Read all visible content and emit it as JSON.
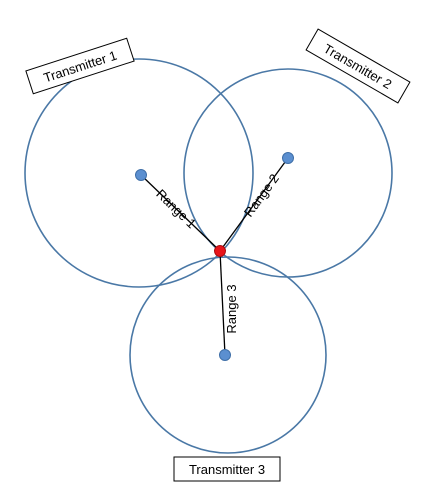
{
  "colors": {
    "circle_stroke": "#4a78a6",
    "transmitter_dot": "#5b8fd0",
    "transmitter_dot_stroke": "#3f6fa8",
    "receiver_dot": "#e8141b",
    "receiver_dot_stroke": "#a80d12",
    "line": "#000000"
  },
  "transmitters": [
    {
      "label": "Transmitter 1",
      "range_label": "Range 1"
    },
    {
      "label": "Transmitter 2",
      "range_label": "Range 2"
    },
    {
      "label": "Transmitter 3",
      "range_label": "Range 3"
    }
  ]
}
